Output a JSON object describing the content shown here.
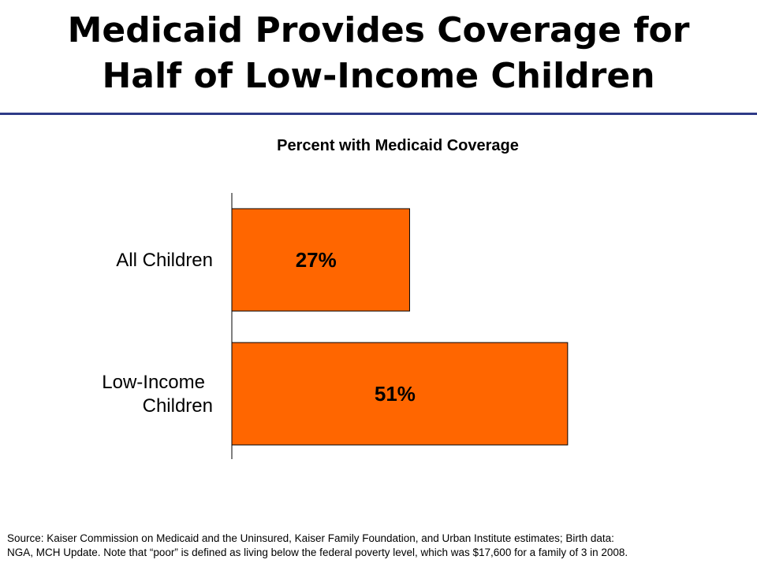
{
  "slide": {
    "title_line1": "Medicaid Provides Coverage for",
    "title_line2": "Half of Low-Income Children",
    "rule_color": "#2e3a87",
    "source_line1": "Source:  Kaiser Commission on Medicaid and the Uninsured, Kaiser Family Foundation, and Urban Institute estimates; Birth data:",
    "source_line2": "NGA, MCH Update. Note that “poor” is defined as living below the federal poverty level, which was $17,600 for a  family of 3 in 2008."
  },
  "chart_data": {
    "type": "bar",
    "orientation": "horizontal",
    "title": "Percent with Medicaid Coverage",
    "categories": [
      [
        "All Children"
      ],
      [
        "Low-Income",
        "Children"
      ]
    ],
    "values": [
      27,
      51
    ],
    "value_labels": [
      "27%",
      "51%"
    ],
    "xlim": [
      0,
      100
    ],
    "grid": false,
    "legend": "none",
    "bar_color": "#ff6600",
    "bar_edge_color": "#000000"
  }
}
